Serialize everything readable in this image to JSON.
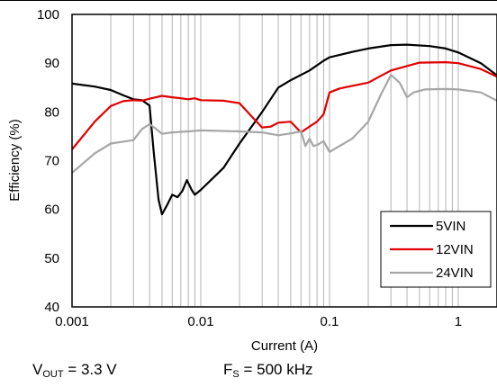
{
  "chart_data": {
    "type": "line",
    "title": "",
    "xlabel": "Current (A)",
    "ylabel": "Efficiency (%)",
    "xscale": "log",
    "xlim": [
      0.001,
      2.0
    ],
    "ylim": [
      40,
      100
    ],
    "x_ticks": [
      {
        "value": 0.001,
        "label": "0.001"
      },
      {
        "value": 0.01,
        "label": "0.01"
      },
      {
        "value": 0.1,
        "label": "0.1"
      },
      {
        "value": 1,
        "label": "1"
      }
    ],
    "y_ticks": [
      40,
      50,
      60,
      70,
      80,
      90,
      100
    ],
    "grid": "vertical log-minor gridlines",
    "legend_position": "bottom-right",
    "series": [
      {
        "name": "5VIN",
        "color": "#000000",
        "points": [
          [
            0.001,
            85.8
          ],
          [
            0.0015,
            85.2
          ],
          [
            0.002,
            84.5
          ],
          [
            0.0025,
            83.4
          ],
          [
            0.003,
            82.6
          ],
          [
            0.0035,
            82.4
          ],
          [
            0.004,
            81.3
          ],
          [
            0.0043,
            72.0
          ],
          [
            0.0047,
            62.0
          ],
          [
            0.005,
            59.0
          ],
          [
            0.0055,
            61.0
          ],
          [
            0.006,
            63.0
          ],
          [
            0.0066,
            62.5
          ],
          [
            0.0072,
            63.8
          ],
          [
            0.0078,
            66.0
          ],
          [
            0.0085,
            64.0
          ],
          [
            0.009,
            63.0
          ],
          [
            0.01,
            64.0
          ],
          [
            0.015,
            68.5
          ],
          [
            0.02,
            73.5
          ],
          [
            0.03,
            80.0
          ],
          [
            0.04,
            85.0
          ],
          [
            0.05,
            86.5
          ],
          [
            0.07,
            88.5
          ],
          [
            0.09,
            90.5
          ],
          [
            0.1,
            91.2
          ],
          [
            0.15,
            92.3
          ],
          [
            0.2,
            93.0
          ],
          [
            0.3,
            93.7
          ],
          [
            0.4,
            93.8
          ],
          [
            0.6,
            93.5
          ],
          [
            0.8,
            93.0
          ],
          [
            1.0,
            92.2
          ],
          [
            1.5,
            90.0
          ],
          [
            2.0,
            87.5
          ]
        ]
      },
      {
        "name": "12VIN",
        "color": "#e00000",
        "points": [
          [
            0.001,
            72.3
          ],
          [
            0.0015,
            78.0
          ],
          [
            0.002,
            81.2
          ],
          [
            0.0025,
            82.2
          ],
          [
            0.003,
            82.4
          ],
          [
            0.0035,
            82.3
          ],
          [
            0.004,
            82.7
          ],
          [
            0.005,
            83.3
          ],
          [
            0.006,
            83.0
          ],
          [
            0.007,
            82.8
          ],
          [
            0.008,
            82.6
          ],
          [
            0.009,
            82.8
          ],
          [
            0.01,
            82.4
          ],
          [
            0.015,
            82.3
          ],
          [
            0.02,
            81.8
          ],
          [
            0.025,
            79.0
          ],
          [
            0.03,
            76.8
          ],
          [
            0.035,
            77.0
          ],
          [
            0.04,
            77.8
          ],
          [
            0.05,
            78.0
          ],
          [
            0.06,
            75.8
          ],
          [
            0.07,
            77.0
          ],
          [
            0.08,
            78.0
          ],
          [
            0.09,
            79.5
          ],
          [
            0.1,
            84.0
          ],
          [
            0.12,
            84.8
          ],
          [
            0.2,
            86.0
          ],
          [
            0.3,
            88.5
          ],
          [
            0.5,
            90.1
          ],
          [
            0.8,
            90.2
          ],
          [
            1.0,
            90.0
          ],
          [
            1.5,
            88.8
          ],
          [
            2.0,
            87.2
          ]
        ]
      },
      {
        "name": "24VIN",
        "color": "#a6a6a6",
        "points": [
          [
            0.001,
            67.5
          ],
          [
            0.0015,
            71.5
          ],
          [
            0.002,
            73.5
          ],
          [
            0.003,
            74.2
          ],
          [
            0.0035,
            76.5
          ],
          [
            0.004,
            77.5
          ],
          [
            0.0045,
            76.5
          ],
          [
            0.005,
            75.5
          ],
          [
            0.006,
            75.8
          ],
          [
            0.008,
            76.0
          ],
          [
            0.01,
            76.2
          ],
          [
            0.02,
            76.0
          ],
          [
            0.03,
            75.8
          ],
          [
            0.04,
            75.2
          ],
          [
            0.05,
            75.6
          ],
          [
            0.06,
            76.0
          ],
          [
            0.065,
            73.0
          ],
          [
            0.07,
            74.5
          ],
          [
            0.075,
            73.0
          ],
          [
            0.08,
            73.2
          ],
          [
            0.09,
            74.0
          ],
          [
            0.1,
            71.8
          ],
          [
            0.15,
            74.5
          ],
          [
            0.2,
            78.0
          ],
          [
            0.25,
            83.5
          ],
          [
            0.3,
            87.6
          ],
          [
            0.35,
            86.0
          ],
          [
            0.4,
            83.0
          ],
          [
            0.45,
            84.0
          ],
          [
            0.55,
            84.6
          ],
          [
            0.8,
            84.7
          ],
          [
            1.0,
            84.6
          ],
          [
            1.5,
            84.0
          ],
          [
            2.0,
            82.3
          ]
        ]
      }
    ]
  },
  "conditions": {
    "vout_prefix": "V",
    "vout_sub": "OUT",
    "vout_value": " = 3.3 V",
    "fs_prefix": "F",
    "fs_sub": "S",
    "fs_value": " = 500 kHz"
  }
}
